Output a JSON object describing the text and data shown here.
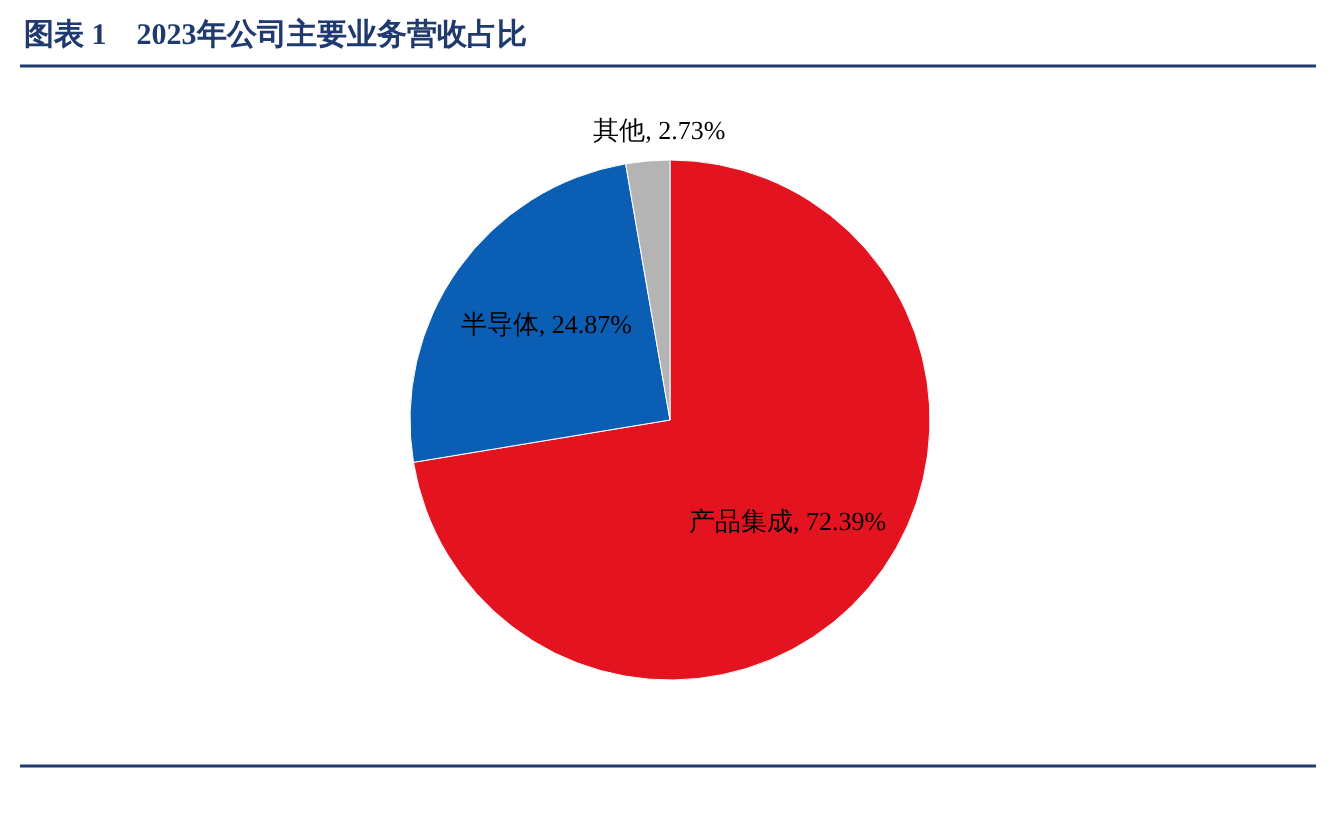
{
  "chart_data": {
    "type": "pie",
    "title": "图表 1　2023年公司主要业务营收占比",
    "categories": [
      "产品集成",
      "半导体",
      "其他"
    ],
    "values": [
      72.39,
      24.87,
      2.73
    ],
    "colors": [
      "#e3141f",
      "#0a5fb4",
      "#b4b4b4"
    ],
    "value_labels": [
      ", 72.39%",
      ", 24.87%",
      ", 2.73%"
    ],
    "legend": false
  }
}
